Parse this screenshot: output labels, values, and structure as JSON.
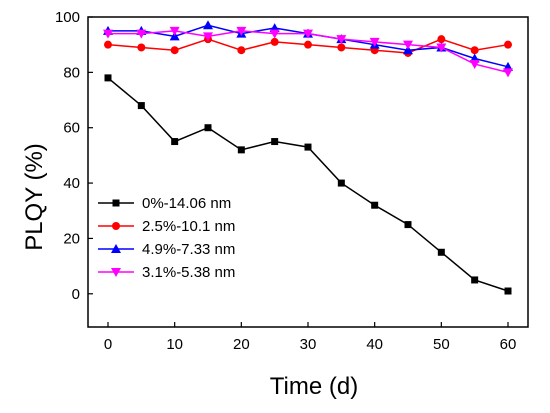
{
  "chart_data": {
    "type": "line",
    "title": "",
    "xlabel": "Time (d)",
    "ylabel": "PLQY (%)",
    "xlim": [
      -3,
      63
    ],
    "ylim": [
      -12,
      100
    ],
    "xticks": [
      0,
      10,
      20,
      30,
      40,
      50,
      60
    ],
    "yticks": [
      0,
      20,
      40,
      60,
      80,
      100
    ],
    "x": [
      0,
      5,
      10,
      15,
      20,
      25,
      30,
      35,
      40,
      45,
      50,
      55,
      60
    ],
    "legend_position": "bottom-left",
    "series": [
      {
        "name": "0%-14.06 nm",
        "color": "#000000",
        "marker": "square",
        "values": [
          78,
          68,
          55,
          60,
          52,
          55,
          53,
          40,
          32,
          25,
          15,
          5,
          1
        ]
      },
      {
        "name": "2.5%-10.1 nm",
        "color": "#ff0000",
        "marker": "circle",
        "values": [
          90,
          89,
          88,
          92,
          88,
          91,
          90,
          89,
          88,
          87,
          92,
          88,
          90
        ]
      },
      {
        "name": "4.9%-7.33 nm",
        "color": "#0000ff",
        "marker": "triangle-up",
        "values": [
          95,
          95,
          93,
          97,
          94,
          96,
          94,
          92,
          90,
          88,
          89,
          85,
          82
        ]
      },
      {
        "name": "3.1%-5.38 nm",
        "color": "#ff00ff",
        "marker": "triangle-down",
        "values": [
          94,
          94,
          95,
          93,
          95,
          94,
          94,
          92,
          91,
          90,
          89,
          83,
          80
        ]
      }
    ]
  }
}
